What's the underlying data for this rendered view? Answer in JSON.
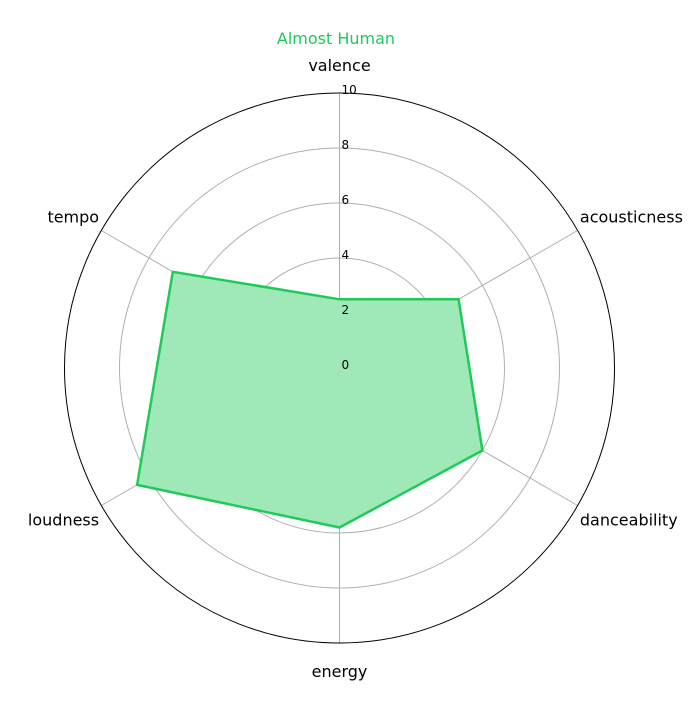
{
  "chart_data": {
    "type": "radar",
    "title": "Almost Human",
    "title_color": "#21c95a",
    "series_color": "#21c95a",
    "fill_color": "#9fe8b8",
    "axes": [
      "valence",
      "acousticness",
      "danceability",
      "energy",
      "loudness",
      "tempo"
    ],
    "values": [
      2.5,
      5.0,
      6.0,
      5.8,
      8.5,
      7.0
    ],
    "rlim": [
      0,
      10
    ],
    "rticks": [
      "0",
      "2",
      "4",
      "6",
      "8",
      "10"
    ],
    "grid": true
  }
}
